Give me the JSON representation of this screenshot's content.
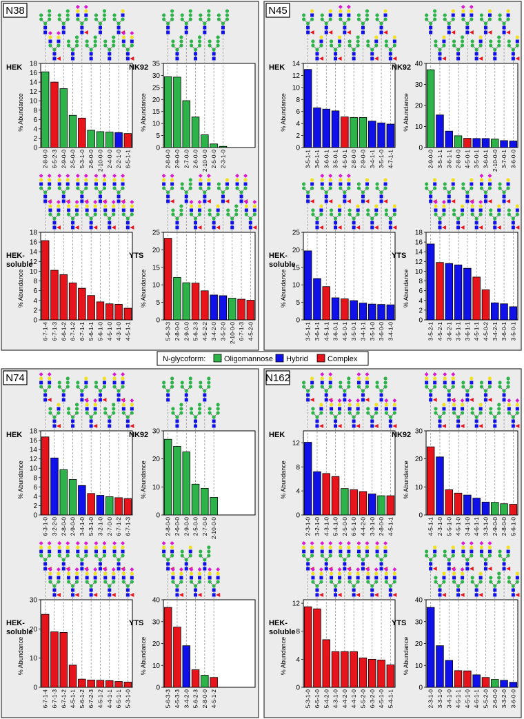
{
  "panels": [
    "N38",
    "N45",
    "N74",
    "N162"
  ],
  "legend": {
    "title": "N-glycoform:",
    "items": [
      {
        "name": "Oligomannose",
        "color": "#2db34a"
      },
      {
        "name": "Hybrid",
        "color": "#1010e8"
      },
      {
        "name": "Complex",
        "color": "#e8141c"
      }
    ]
  },
  "chart_data": [
    {
      "type": "bar",
      "title": "HEK",
      "y_label": "% Abundance",
      "ylim": [
        0,
        18
      ],
      "yticks": [
        0,
        2,
        4,
        6,
        8,
        10,
        12,
        14,
        16,
        18
      ],
      "categories": [
        "2-8-0-0",
        "6-5-2-3",
        "2-9-0-0",
        "2-5-0-0",
        "5-3-1-0",
        "2-6-0-0",
        "2-10-0-0",
        "2-4-0-0",
        "2-2-1-0",
        "6-5-1-1"
      ],
      "values": [
        16.2,
        14,
        12.6,
        6.9,
        6.3,
        3.7,
        3.4,
        3.3,
        3.2,
        3.0
      ],
      "colors": [
        "#2db34a",
        "#e8141c",
        "#2db34a",
        "#2db34a",
        "#e8141c",
        "#2db34a",
        "#2db34a",
        "#2db34a",
        "#1010e8",
        "#e8141c"
      ]
    },
    {
      "type": "bar",
      "title": "NK92",
      "y_label": "% Abundance",
      "ylim": [
        0,
        35
      ],
      "yticks": [
        0,
        5,
        10,
        15,
        20,
        25,
        30,
        35
      ],
      "categories": [
        "2-8-0-0",
        "2-9-0-0",
        "2-7-0-0",
        "2-6-0-0",
        "2-10-0-0",
        "2-5-0-0",
        "2-3-1-0"
      ],
      "values": [
        29.5,
        29.3,
        19.5,
        12.7,
        5.3,
        1.5,
        0.5
      ],
      "colors": [
        "#2db34a",
        "#2db34a",
        "#2db34a",
        "#2db34a",
        "#2db34a",
        "#2db34a",
        "#2db34a"
      ]
    },
    {
      "type": "bar",
      "title": "HEK-soluble",
      "y_label": "% Abundance",
      "ylim": [
        0,
        18
      ],
      "yticks": [
        0,
        2,
        4,
        6,
        8,
        10,
        12,
        14,
        16,
        18
      ],
      "categories": [
        "6-7-1-4",
        "6-7-1-3",
        "6-6-1-2",
        "6-7-1-2",
        "6-7-1-1",
        "5-6-1-1",
        "5-6-1-0",
        "4-5-1-0",
        "4-3-1-0",
        "4-5-1-1"
      ],
      "values": [
        16.3,
        10.2,
        9.3,
        7.6,
        6.5,
        5.0,
        3.7,
        3.3,
        3.2,
        2.4
      ],
      "colors": [
        "#e8141c",
        "#e8141c",
        "#e8141c",
        "#e8141c",
        "#e8141c",
        "#e8141c",
        "#e8141c",
        "#e8141c",
        "#e8141c",
        "#e8141c"
      ]
    },
    {
      "type": "bar",
      "title": "YTS",
      "y_label": "% Abundance",
      "ylim": [
        0,
        25
      ],
      "yticks": [
        0,
        5,
        10,
        15,
        20,
        25
      ],
      "categories": [
        "5-6-3-3",
        "2-8-0-0",
        "2-9-0-0",
        "5-6-2-3",
        "4-5-2-2",
        "3-4-2-0",
        "3-5-2-0",
        "2-10-0-0",
        "6-7-1-3",
        "4-5-2-0"
      ],
      "values": [
        23.3,
        12.1,
        10.6,
        10.5,
        8.3,
        7.1,
        6.9,
        6.2,
        5.9,
        5.6
      ],
      "colors": [
        "#e8141c",
        "#2db34a",
        "#2db34a",
        "#e8141c",
        "#e8141c",
        "#1010e8",
        "#1010e8",
        "#2db34a",
        "#e8141c",
        "#e8141c"
      ]
    },
    {
      "type": "bar",
      "title": "HEK",
      "y_label": "% Abundance",
      "ylim": [
        0,
        14
      ],
      "yticks": [
        0,
        2,
        4,
        6,
        8,
        10,
        12,
        14
      ],
      "categories": [
        "3-5-1-1",
        "3-6-1-1",
        "3-6-0-1",
        "3-5-0-1",
        "4-5-0-1",
        "2-8-0-0",
        "2-9-0-0",
        "3-4-1-1",
        "3-5-1-0",
        "4-7-1-1"
      ],
      "values": [
        13.0,
        6.6,
        6.4,
        6.1,
        5.1,
        5.0,
        5.0,
        4.4,
        4.1,
        3.9
      ],
      "colors": [
        "#1010e8",
        "#1010e8",
        "#1010e8",
        "#1010e8",
        "#e8141c",
        "#2db34a",
        "#2db34a",
        "#1010e8",
        "#1010e8",
        "#1010e8"
      ]
    },
    {
      "type": "bar",
      "title": "NK92",
      "y_label": "% Abundance",
      "ylim": [
        0,
        40
      ],
      "yticks": [
        0,
        10,
        20,
        30,
        40
      ],
      "categories": [
        "2-9-0-0",
        "3-5-1-1",
        "3-6-1-1",
        "2-8-0-0",
        "4-5-0-1",
        "3-5-0-1",
        "3-6-0-1",
        "2-10-0-0",
        "3-7-0-1",
        "3-6-0-0"
      ],
      "values": [
        37,
        15.5,
        7.8,
        5.6,
        4.4,
        4.3,
        4.3,
        4.0,
        3.3,
        3.1
      ],
      "colors": [
        "#2db34a",
        "#1010e8",
        "#1010e8",
        "#2db34a",
        "#e8141c",
        "#1010e8",
        "#1010e8",
        "#2db34a",
        "#1010e8",
        "#1010e8"
      ]
    },
    {
      "type": "bar",
      "title": "HEK-soluble",
      "y_label": "% Abundance",
      "ylim": [
        0,
        25
      ],
      "yticks": [
        0,
        5,
        10,
        15,
        20,
        25
      ],
      "categories": [
        "3-5-1-1",
        "3-6-1-1",
        "4-5-1-1",
        "3-6-0-1",
        "4-5-0-1",
        "3-5-0-1",
        "3-4-1-1",
        "3-5-1-0",
        "3-6-0-0",
        "3-4-1-0"
      ],
      "values": [
        19.7,
        11.8,
        9.5,
        6.3,
        6.0,
        5.5,
        4.8,
        4.5,
        4.4,
        4.3
      ],
      "colors": [
        "#1010e8",
        "#1010e8",
        "#e8141c",
        "#1010e8",
        "#e8141c",
        "#1010e8",
        "#1010e8",
        "#1010e8",
        "#1010e8",
        "#1010e8"
      ]
    },
    {
      "type": "bar",
      "title": "YTS",
      "y_label": "% Abundance",
      "ylim": [
        0,
        18
      ],
      "yticks": [
        0,
        2,
        4,
        6,
        8,
        10,
        12,
        14,
        16,
        18
      ],
      "categories": [
        "3-5-2-1",
        "4-5-2-1",
        "3-6-2-1",
        "3-5-1-1",
        "3-6-1-1",
        "4-5-1-1",
        "4-5-0-2",
        "3-4-2-1",
        "3-6-0-1",
        "3-5-0-1"
      ],
      "values": [
        15.6,
        11.8,
        11.6,
        11.3,
        10.6,
        8.8,
        6.2,
        3.5,
        3.3,
        2.7
      ],
      "colors": [
        "#1010e8",
        "#e8141c",
        "#1010e8",
        "#1010e8",
        "#1010e8",
        "#e8141c",
        "#e8141c",
        "#1010e8",
        "#1010e8",
        "#1010e8"
      ]
    },
    {
      "type": "bar",
      "title": "HEK",
      "y_label": "% Abundance",
      "ylim": [
        0,
        18
      ],
      "yticks": [
        0,
        2,
        4,
        6,
        8,
        10,
        12,
        14,
        16,
        18
      ],
      "categories": [
        "6-3-1-0",
        "3-2-2-0",
        "2-8-0-0",
        "2-9-0-0",
        "3-4-1-0",
        "5-3-1-0",
        "3-2-1-0",
        "2-7-0-0",
        "6-7-1-2",
        "6-7-1-3"
      ],
      "values": [
        16.7,
        12.2,
        9.7,
        7.6,
        6.3,
        4.6,
        4.2,
        3.9,
        3.7,
        3.5
      ],
      "colors": [
        "#e8141c",
        "#1010e8",
        "#2db34a",
        "#2db34a",
        "#1010e8",
        "#e8141c",
        "#1010e8",
        "#2db34a",
        "#e8141c",
        "#e8141c"
      ]
    },
    {
      "type": "bar",
      "title": "NK92",
      "y_label": "% Abundance",
      "ylim": [
        0,
        30
      ],
      "yticks": [
        0,
        10,
        20,
        30
      ],
      "categories": [
        "2-8-0-0",
        "2-6-0-0",
        "2-9-0-0",
        "2-5-0-0",
        "2-7-0-0",
        "2-10-0-0"
      ],
      "values": [
        27,
        24.5,
        22.5,
        11,
        9.5,
        6.3
      ],
      "colors": [
        "#2db34a",
        "#2db34a",
        "#2db34a",
        "#2db34a",
        "#2db34a",
        "#2db34a"
      ]
    },
    {
      "type": "bar",
      "title": "HEK-soluble",
      "y_label": "% Abundance",
      "ylim": [
        0,
        30
      ],
      "yticks": [
        0,
        10,
        20,
        30
      ],
      "categories": [
        "6-7-1-4",
        "6-7-1-3",
        "6-7-1-2",
        "4-5-1-1",
        "5-6-1-2",
        "6-7-2-3",
        "4-5-1-2",
        "4-4-1-1",
        "6-5-1-1",
        "5-3-1-0"
      ],
      "values": [
        25,
        19,
        18.8,
        7.6,
        2.8,
        2.5,
        2.4,
        2.3,
        2.0,
        1.8
      ],
      "colors": [
        "#e8141c",
        "#e8141c",
        "#e8141c",
        "#e8141c",
        "#e8141c",
        "#e8141c",
        "#e8141c",
        "#e8141c",
        "#e8141c",
        "#e8141c"
      ]
    },
    {
      "type": "bar",
      "title": "YTS",
      "y_label": "% Abundance",
      "ylim": [
        0,
        40
      ],
      "yticks": [
        0,
        10,
        20,
        30,
        40
      ],
      "categories": [
        "5-6-3-3",
        "4-5-3-3",
        "3-4-2-0",
        "5-6-2-3",
        "2-8-0-0",
        "4-5-1-2"
      ],
      "values": [
        36.5,
        27.5,
        19,
        8,
        5.5,
        4.5
      ],
      "colors": [
        "#e8141c",
        "#e8141c",
        "#1010e8",
        "#e8141c",
        "#2db34a",
        "#e8141c"
      ]
    },
    {
      "type": "bar",
      "title": "HEK",
      "y_label": "% Abundance",
      "ylim": [
        0,
        14
      ],
      "yticks": [
        0,
        4,
        8,
        12
      ],
      "categories": [
        "2-3-1-0",
        "3-2-1-0",
        "4-3-1-0",
        "5-4-1-0",
        "2-5-0-0",
        "6-5-1-0",
        "4-4-2-0",
        "3-3-1-0",
        "2-8-0-0",
        "4-5-1-1"
      ],
      "values": [
        12.1,
        7.2,
        6.9,
        6.4,
        4.4,
        4.2,
        3.9,
        3.5,
        3.2,
        3.2
      ],
      "colors": [
        "#1010e8",
        "#1010e8",
        "#e8141c",
        "#e8141c",
        "#2db34a",
        "#e8141c",
        "#e8141c",
        "#1010e8",
        "#2db34a",
        "#e8141c"
      ]
    },
    {
      "type": "bar",
      "title": "NK92",
      "y_label": "% Abundance",
      "ylim": [
        0,
        30
      ],
      "yticks": [
        0,
        10,
        20,
        30
      ],
      "categories": [
        "4-5-1-1",
        "2-3-1-0",
        "5-5-1-0",
        "4-5-1-0",
        "3-4-1-0",
        "4-6-1-1",
        "3-3-1-0",
        "2-9-0-0",
        "2-8-0-0",
        "5-6-1-0"
      ],
      "values": [
        24.3,
        20.7,
        9,
        7.8,
        7.1,
        6.0,
        4.6,
        4.5,
        4.0,
        3.8
      ],
      "colors": [
        "#e8141c",
        "#1010e8",
        "#e8141c",
        "#e8141c",
        "#1010e8",
        "#1010e8",
        "#1010e8",
        "#2db34a",
        "#2db34a",
        "#e8141c"
      ]
    },
    {
      "type": "bar",
      "title": "HEK-soluble",
      "y_label": "% Abundance",
      "ylim": [
        0,
        12.5
      ],
      "yticks": [
        0,
        4,
        8,
        12
      ],
      "categories": [
        "5-3-1-0",
        "6-5-1-0",
        "5-4-2-0",
        "4-3-1-0",
        "4-4-2-0",
        "4-4-1-0",
        "5-5-2-0",
        "6-3-2-0",
        "4-5-1-0",
        "5-4-1-1"
      ],
      "values": [
        11.5,
        11.2,
        6.8,
        5.1,
        5.1,
        5.1,
        4.2,
        4.0,
        3.9,
        3.2
      ],
      "colors": [
        "#e8141c",
        "#e8141c",
        "#e8141c",
        "#e8141c",
        "#e8141c",
        "#e8141c",
        "#e8141c",
        "#e8141c",
        "#e8141c",
        "#e8141c"
      ]
    },
    {
      "type": "bar",
      "title": "YTS",
      "y_label": "% Abundance",
      "ylim": [
        0,
        40
      ],
      "yticks": [
        0,
        10,
        20,
        30,
        40
      ],
      "categories": [
        "2-3-1-0",
        "3-3-1-0",
        "3-4-1-0",
        "4-5-1-1",
        "4-5-1-0",
        "4-6-1-1",
        "5-5-2-0",
        "2-6-0-0",
        "3-3-2-0",
        "3-6-0-0"
      ],
      "values": [
        36.5,
        19,
        12.3,
        7.6,
        7.5,
        5.7,
        4.5,
        3.6,
        3.2,
        2.3
      ],
      "colors": [
        "#1010e8",
        "#1010e8",
        "#1010e8",
        "#e8141c",
        "#e8141c",
        "#1010e8",
        "#e8141c",
        "#2db34a",
        "#1010e8",
        "#1010e8"
      ]
    }
  ]
}
